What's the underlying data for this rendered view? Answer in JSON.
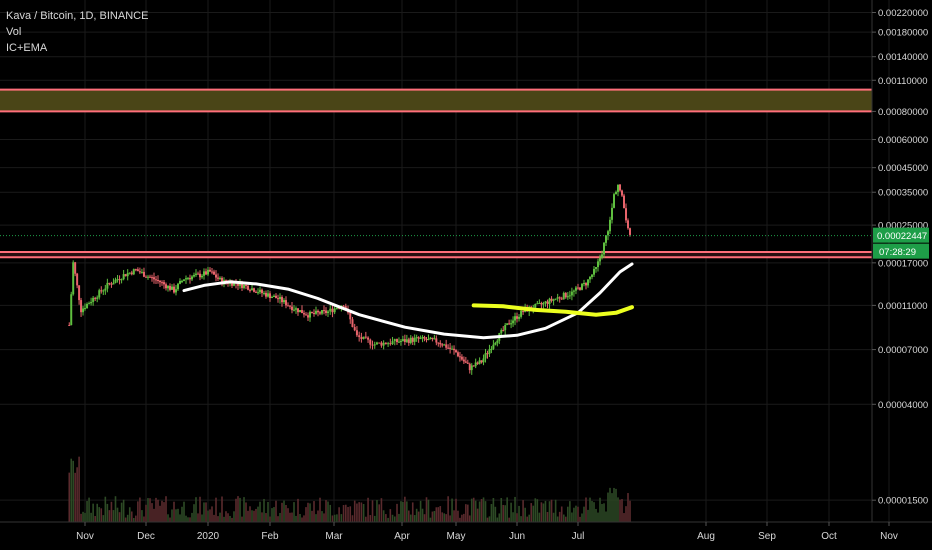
{
  "legend": {
    "symbol": "Kava / Bitcoin, 1D, BINANCE",
    "vol": "Vol",
    "ind": "IC+EMA"
  },
  "colors": {
    "background": "#000000",
    "grid": "#1a1a1a",
    "text": "#d9d9d9",
    "up": "#5fbf3f",
    "down": "#e8646b",
    "zone_line": "#ff6f7a",
    "zone_fill": "#4a4517",
    "last_price_bg": "#1e9e48",
    "ema_white": "#ffffff",
    "ema_yellow": "#ecff1f"
  },
  "price_scale": {
    "ticks": [
      "0.00220000",
      "0.00180000",
      "0.00140000",
      "0.00110000",
      "0.00080000",
      "0.00060000",
      "0.00045000",
      "0.00035000",
      "0.00025000",
      "0.00017000",
      "0.00011000",
      "0.00007000",
      "0.00004000",
      "0.00001500"
    ],
    "last_price": "0.00022447",
    "countdown": "07:28:29"
  },
  "time_axis": {
    "labels": [
      "Nov",
      "Dec",
      "2020",
      "Feb",
      "Mar",
      "Apr",
      "May",
      "Jun",
      "Jul",
      "Aug",
      "Sep",
      "Oct",
      "Nov"
    ]
  },
  "chart_data": {
    "type": "candlestick",
    "scale": "log",
    "x_start": "2019-10-24",
    "ylim": [
      1.2e-05,
      0.0025
    ],
    "resistance_zone": [
      0.0008,
      0.001
    ],
    "support_zone": [
      0.00018,
      0.00019
    ],
    "close_path": [
      [
        "2019-10-24",
        9e-05
      ],
      [
        "2019-10-26",
        0.00017
      ],
      [
        "2019-10-30",
        0.000105
      ],
      [
        "2019-11-05",
        0.000118
      ],
      [
        "2019-11-12",
        0.000135
      ],
      [
        "2019-11-20",
        0.00015
      ],
      [
        "2019-11-26",
        0.000158
      ],
      [
        "2019-12-02",
        0.000148
      ],
      [
        "2019-12-08",
        0.00014
      ],
      [
        "2019-12-15",
        0.000128
      ],
      [
        "2019-12-20",
        0.000145
      ],
      [
        "2019-12-28",
        0.00015
      ],
      [
        "2020-01-02",
        0.000155
      ],
      [
        "2020-01-08",
        0.00014
      ],
      [
        "2020-01-15",
        0.000138
      ],
      [
        "2020-01-22",
        0.000132
      ],
      [
        "2020-01-28",
        0.000125
      ],
      [
        "2020-02-05",
        0.000118
      ],
      [
        "2020-02-12",
        0.000108
      ],
      [
        "2020-02-20",
        0.0001
      ],
      [
        "2020-03-01",
        0.000103
      ],
      [
        "2020-03-08",
        0.000112
      ],
      [
        "2020-03-14",
        8e-05
      ],
      [
        "2020-03-22",
        7.4e-05
      ],
      [
        "2020-04-01",
        7.6e-05
      ],
      [
        "2020-04-12",
        7.8e-05
      ],
      [
        "2020-04-22",
        7.6e-05
      ],
      [
        "2020-05-01",
        6.8e-05
      ],
      [
        "2020-05-08",
        5.8e-05
      ],
      [
        "2020-05-14",
        6.2e-05
      ],
      [
        "2020-05-20",
        7.5e-05
      ],
      [
        "2020-05-28",
        9.2e-05
      ],
      [
        "2020-06-05",
        0.000105
      ],
      [
        "2020-06-12",
        0.00011
      ],
      [
        "2020-06-20",
        0.000118
      ],
      [
        "2020-06-28",
        0.000125
      ],
      [
        "2020-07-05",
        0.000138
      ],
      [
        "2020-07-10",
        0.00016
      ],
      [
        "2020-07-13",
        0.00019
      ],
      [
        "2020-07-17",
        0.00026
      ],
      [
        "2020-07-19",
        0.00034
      ],
      [
        "2020-07-21",
        0.00038
      ],
      [
        "2020-07-23",
        0.00033
      ],
      [
        "2020-07-25",
        0.00027
      ],
      [
        "2020-07-27",
        0.000224
      ]
    ],
    "ema_white": [
      [
        "2019-12-20",
        0.000128
      ],
      [
        "2019-12-30",
        0.000135
      ],
      [
        "2020-01-12",
        0.00014
      ],
      [
        "2020-01-25",
        0.000137
      ],
      [
        "2020-02-10",
        0.00013
      ],
      [
        "2020-02-25",
        0.000118
      ],
      [
        "2020-03-15",
        0.0001
      ],
      [
        "2020-04-05",
        8.8e-05
      ],
      [
        "2020-04-25",
        8.2e-05
      ],
      [
        "2020-05-15",
        7.9e-05
      ],
      [
        "2020-06-01",
        8.1e-05
      ],
      [
        "2020-06-15",
        8.7e-05
      ],
      [
        "2020-07-01",
        0.000102
      ],
      [
        "2020-07-12",
        0.000125
      ],
      [
        "2020-07-22",
        0.000155
      ],
      [
        "2020-07-28",
        0.000168
      ]
    ],
    "ema_yellow": [
      [
        "2020-05-10",
        0.00011
      ],
      [
        "2020-05-25",
        0.000109
      ],
      [
        "2020-06-10",
        0.000105
      ],
      [
        "2020-06-25",
        0.000103
      ],
      [
        "2020-07-10",
        0.0001
      ],
      [
        "2020-07-20",
        0.000102
      ],
      [
        "2020-07-28",
        0.000108
      ]
    ]
  }
}
